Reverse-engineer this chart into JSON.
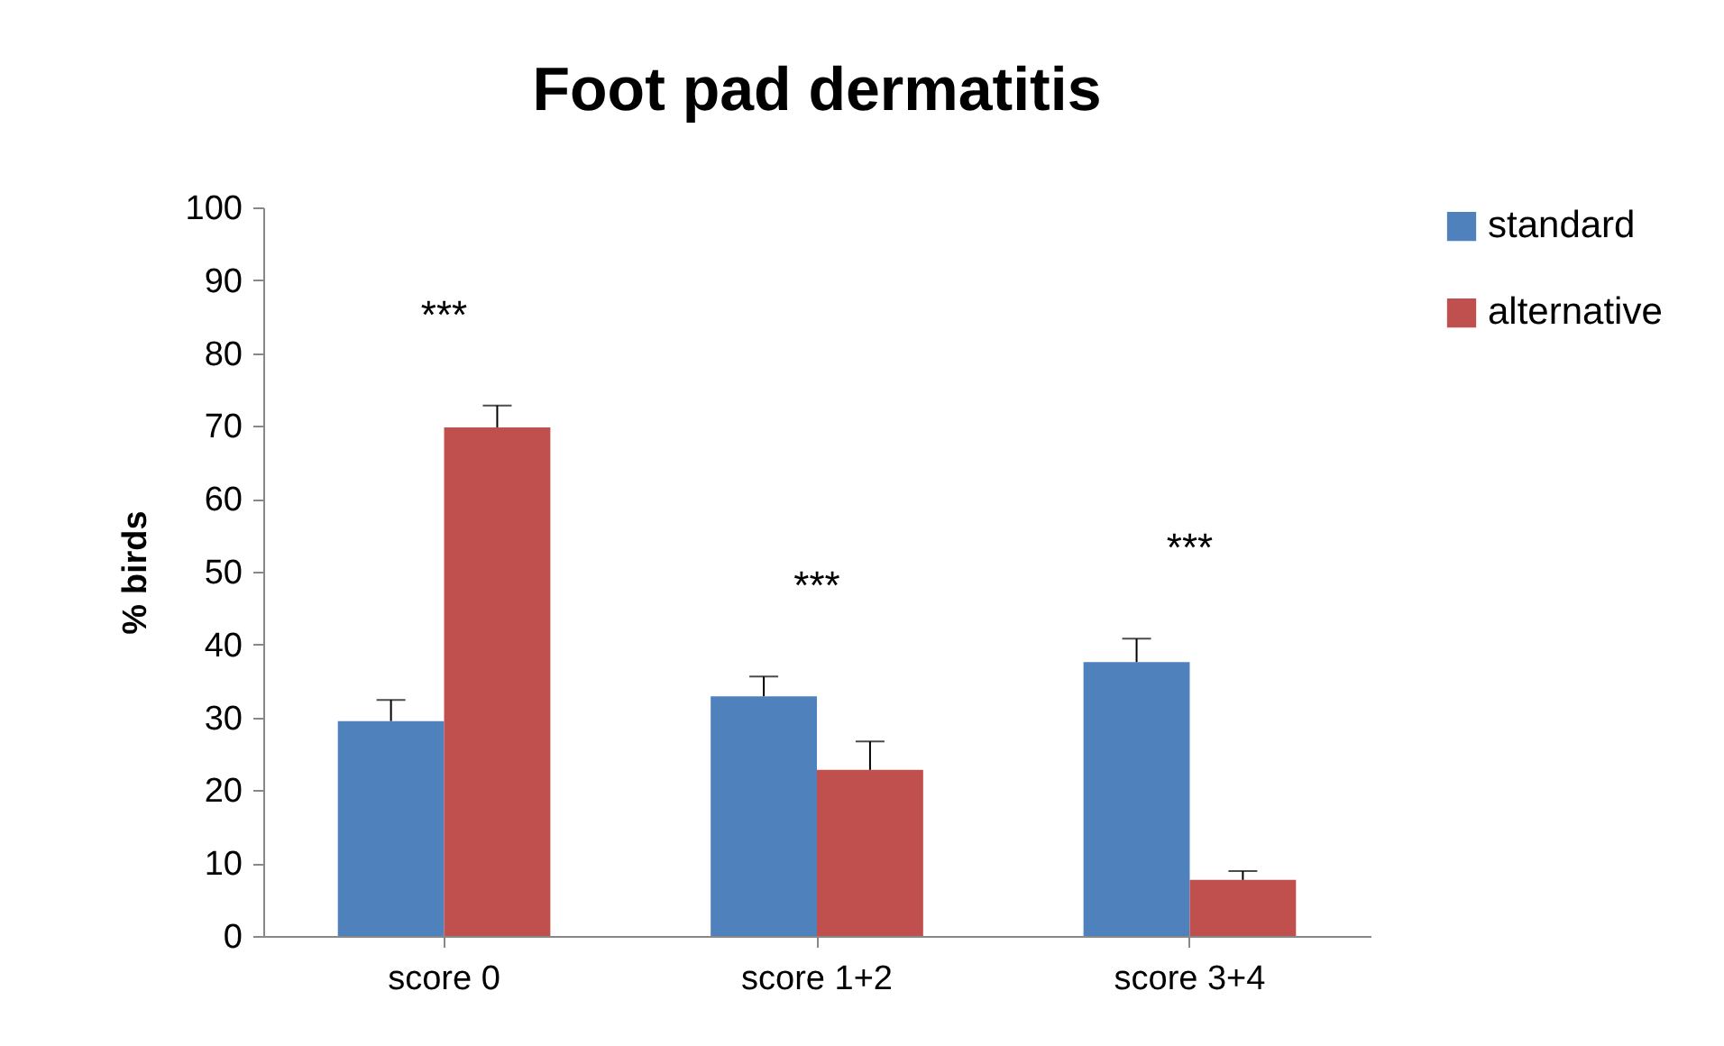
{
  "chart_data": {
    "type": "bar",
    "title": "Foot pad dermatitis",
    "ylabel": "% birds",
    "categories": [
      "score 0",
      "score 1+2",
      "score 3+4"
    ],
    "series": [
      {
        "name": "standard",
        "color": "#4f81bd",
        "values": [
          29.5,
          32.9,
          37.6
        ],
        "errors": [
          [
            29.5,
            32.4
          ],
          [
            32.9,
            35.6
          ],
          [
            37.6,
            40.8
          ]
        ]
      },
      {
        "name": "alternative",
        "color": "#c0504d",
        "values": [
          69.8,
          22.8,
          7.7
        ],
        "errors": [
          [
            69.8,
            72.8
          ],
          [
            22.8,
            26.7
          ],
          [
            7.7,
            8.9
          ]
        ]
      }
    ],
    "annotations": [
      "***",
      "***",
      "***"
    ],
    "ylim": [
      0,
      100
    ],
    "yticks": [
      0,
      10,
      20,
      30,
      40,
      50,
      60,
      70,
      80,
      90,
      100
    ],
    "grid": false,
    "legend": "right"
  }
}
